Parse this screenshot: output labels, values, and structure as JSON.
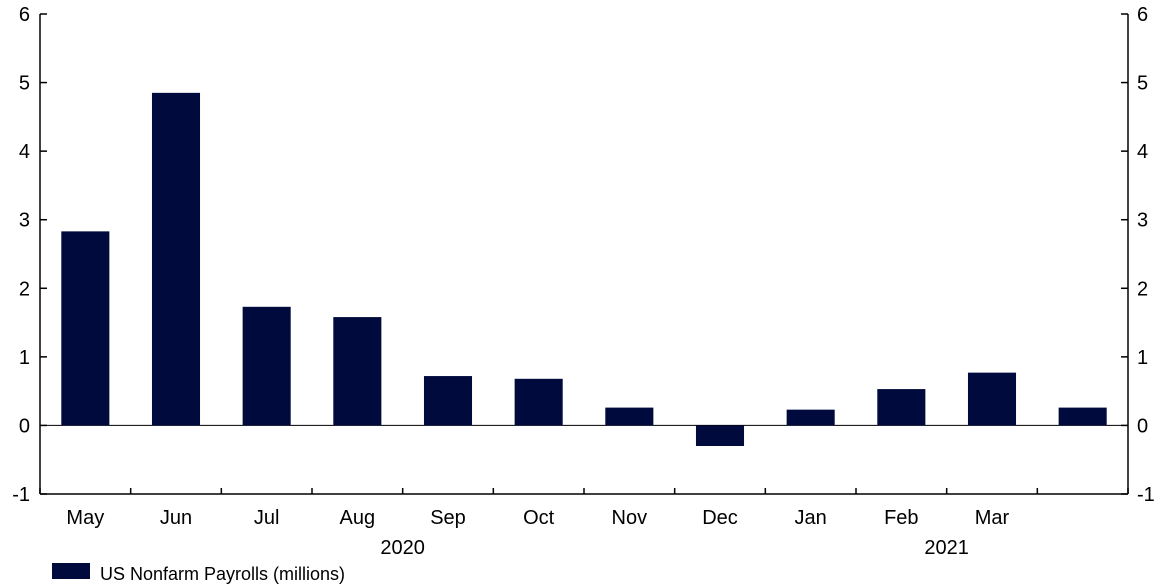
{
  "chart_data": {
    "type": "bar",
    "categories": [
      "May",
      "Jun",
      "Jul",
      "Aug",
      "Sep",
      "Oct",
      "Nov",
      "Dec",
      "Jan",
      "Feb",
      "Mar",
      ""
    ],
    "year_groups": [
      {
        "label": "2020",
        "from": 0,
        "to": 7
      },
      {
        "label": "2021",
        "from": 8,
        "to": 11
      }
    ],
    "series": [
      {
        "name": "US Nonfarm Payrolls (millions)",
        "color": "#000a3d",
        "values": [
          2.83,
          4.85,
          1.73,
          1.58,
          0.72,
          0.68,
          0.26,
          -0.3,
          0.23,
          0.53,
          0.77,
          0.26
        ]
      }
    ],
    "ylim": [
      -1,
      6
    ],
    "yticks": [
      -1,
      0,
      1,
      2,
      3,
      4,
      5,
      6
    ],
    "y_axes": [
      "left",
      "right"
    ],
    "grid": false,
    "legend": "bottom-left",
    "title": "",
    "xlabel": "",
    "ylabel": ""
  }
}
